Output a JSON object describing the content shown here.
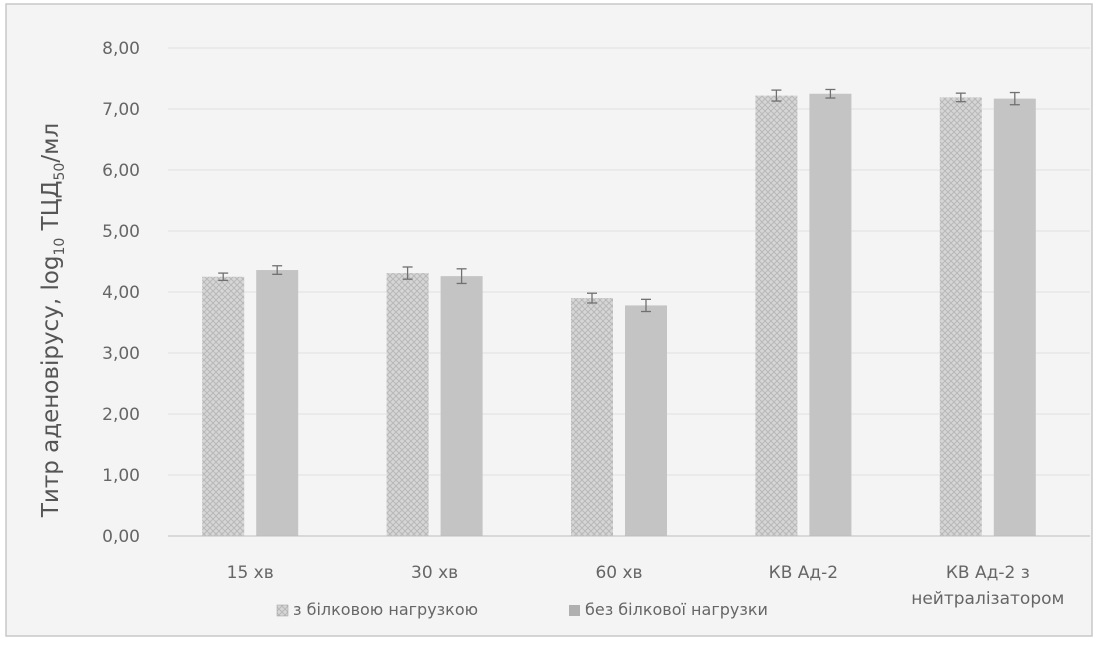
{
  "chart_data": {
    "type": "bar",
    "categories": [
      "15 хв",
      "30 хв",
      "60 хв",
      "КВ Ад-2",
      "КВ Ад-2 з\nнейтралізатором"
    ],
    "series": [
      {
        "name": "з білковою нагрузкою",
        "values": [
          4.25,
          4.31,
          3.9,
          7.22,
          7.19
        ],
        "errors": [
          0.06,
          0.1,
          0.08,
          0.09,
          0.07
        ],
        "fill": "#cfcfcf",
        "pattern": "crosshatch"
      },
      {
        "name": "без білкової нагрузки",
        "values": [
          4.36,
          4.26,
          3.78,
          7.25,
          7.17
        ],
        "errors": [
          0.07,
          0.12,
          0.1,
          0.07,
          0.1
        ],
        "fill": "#c4c4c4",
        "pattern": "solid"
      }
    ],
    "ylabel_main": "Титр аденовірусу, log",
    "ylabel_sub1": "10",
    "ylabel_mid": " ТЦД",
    "ylabel_sub2": "50",
    "ylabel_end": "/мл",
    "ylim": [
      0,
      8
    ],
    "yticks": [
      "0,00",
      "1,00",
      "2,00",
      "3,00",
      "4,00",
      "5,00",
      "6,00",
      "7,00",
      "8,00"
    ],
    "grid": true,
    "legend_position": "bottom",
    "colors": {
      "background": "#f4f4f4",
      "border": "#c8c8c8",
      "grid": "#e1e1e1",
      "text": "#666666",
      "axis": "#bdbdbd"
    }
  }
}
